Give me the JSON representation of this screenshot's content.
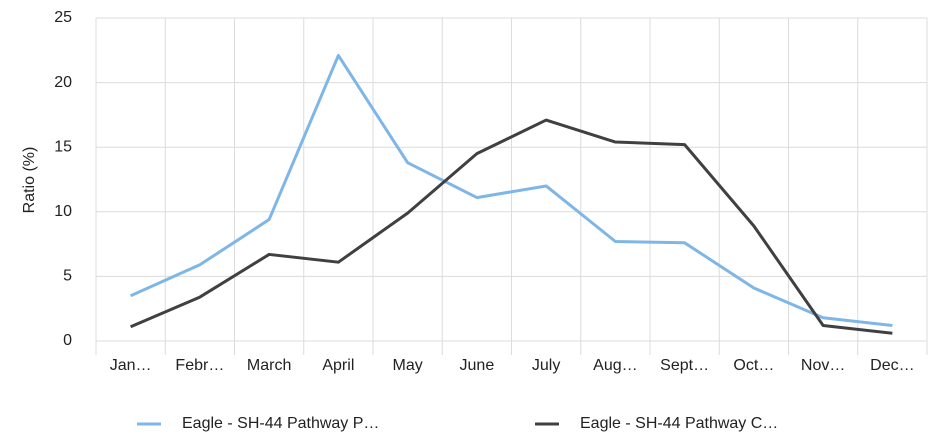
{
  "chart_data": {
    "type": "line",
    "y_label": "Ratio (%)",
    "categories": [
      "Jan…",
      "Febr…",
      "March",
      "April",
      "May",
      "June",
      "July",
      "Aug…",
      "Sept…",
      "Oct…",
      "Nov…",
      "Dec…"
    ],
    "series": [
      {
        "name": "Eagle - SH-44 Pathway P…",
        "color": "#7eb6e8",
        "values": [
          3.5,
          5.9,
          9.4,
          22.1,
          13.8,
          11.1,
          12.0,
          7.7,
          7.6,
          4.1,
          1.8,
          1.2
        ]
      },
      {
        "name": "Eagle - SH-44 Pathway C…",
        "color": "#404040",
        "values": [
          1.1,
          3.4,
          6.7,
          6.1,
          9.9,
          14.5,
          17.1,
          15.4,
          15.2,
          8.9,
          1.2,
          0.6
        ]
      }
    ],
    "ylim": [
      0,
      25
    ],
    "yticks": [
      0,
      5,
      10,
      15,
      20,
      25
    ],
    "grid": true,
    "legend": "bottom"
  }
}
